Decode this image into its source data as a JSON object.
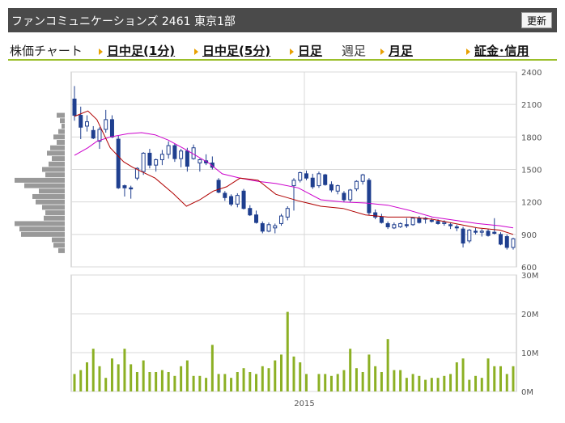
{
  "header": {
    "title": "ファンコミュニケーションズ 2461 東京1部",
    "refresh_label": "更新"
  },
  "tabs": {
    "section_label": "株価チャート",
    "items": [
      {
        "label": "日中足(1分)",
        "link": true
      },
      {
        "label": "日中足(5分)",
        "link": true
      },
      {
        "label": "日足",
        "link": true
      },
      {
        "label": "週足",
        "link": false
      },
      {
        "label": "月足",
        "link": true
      }
    ],
    "margin_link": "証金･信用"
  },
  "colors": {
    "candle": "#1f3f8f",
    "ma_short": "#b00000",
    "ma_long": "#cc00cc",
    "volume": "#8cb024",
    "profile": "#999999",
    "grid": "#d8d8d8"
  },
  "chart_data": [
    {
      "type": "candlestick",
      "title": "",
      "ylim": [
        600,
        2400
      ],
      "yticks": [
        600,
        900,
        1200,
        1500,
        1800,
        2100,
        2400
      ],
      "x_label_year": "2015",
      "candles": [
        [
          2150,
          2270,
          1950,
          2000
        ],
        [
          2000,
          2080,
          1780,
          1890
        ],
        [
          1900,
          2000,
          1850,
          1940
        ],
        [
          1860,
          1900,
          1780,
          1790
        ],
        [
          1760,
          1890,
          1690,
          1870
        ],
        [
          1870,
          2050,
          1840,
          1960
        ],
        [
          1960,
          2000,
          1790,
          1800
        ],
        [
          1780,
          1810,
          1320,
          1330
        ],
        [
          1350,
          1360,
          1250,
          1330
        ],
        [
          1330,
          1350,
          1230,
          1320
        ],
        [
          1420,
          1520,
          1400,
          1510
        ],
        [
          1480,
          1660,
          1450,
          1650
        ],
        [
          1650,
          1690,
          1510,
          1540
        ],
        [
          1540,
          1600,
          1480,
          1590
        ],
        [
          1590,
          1680,
          1540,
          1640
        ],
        [
          1640,
          1760,
          1600,
          1720
        ],
        [
          1720,
          1740,
          1570,
          1600
        ],
        [
          1600,
          1690,
          1520,
          1670
        ],
        [
          1670,
          1700,
          1480,
          1530
        ],
        [
          1600,
          1730,
          1590,
          1700
        ],
        [
          1560,
          1600,
          1480,
          1590
        ],
        [
          1580,
          1640,
          1540,
          1560
        ],
        [
          1560,
          1620,
          1500,
          1520
        ],
        [
          1400,
          1420,
          1280,
          1290
        ],
        [
          1280,
          1300,
          1210,
          1240
        ],
        [
          1250,
          1270,
          1160,
          1180
        ],
        [
          1180,
          1280,
          1150,
          1260
        ],
        [
          1300,
          1320,
          1130,
          1140
        ],
        [
          1140,
          1170,
          1070,
          1080
        ],
        [
          1080,
          1120,
          1000,
          1010
        ],
        [
          1000,
          1020,
          910,
          930
        ],
        [
          930,
          1010,
          920,
          990
        ],
        [
          960,
          1000,
          910,
          980
        ],
        [
          1000,
          1090,
          980,
          1070
        ],
        [
          1060,
          1160,
          1030,
          1140
        ],
        [
          1350,
          1420,
          1120,
          1400
        ],
        [
          1400,
          1480,
          1380,
          1470
        ],
        [
          1460,
          1490,
          1400,
          1420
        ],
        [
          1420,
          1460,
          1320,
          1340
        ],
        [
          1350,
          1480,
          1330,
          1460
        ],
        [
          1450,
          1460,
          1350,
          1360
        ],
        [
          1360,
          1390,
          1290,
          1310
        ],
        [
          1300,
          1360,
          1270,
          1350
        ],
        [
          1280,
          1300,
          1200,
          1220
        ],
        [
          1220,
          1320,
          1200,
          1310
        ],
        [
          1320,
          1400,
          1300,
          1390
        ],
        [
          1390,
          1460,
          1360,
          1450
        ],
        [
          1400,
          1420,
          1080,
          1100
        ],
        [
          1100,
          1130,
          1040,
          1060
        ],
        [
          1060,
          1090,
          1000,
          1010
        ],
        [
          1000,
          1020,
          950,
          970
        ],
        [
          960,
          1010,
          950,
          990
        ],
        [
          970,
          1010,
          960,
          1000
        ],
        [
          990,
          1050,
          960,
          980
        ],
        [
          990,
          1060,
          980,
          1050
        ],
        [
          1050,
          1070,
          1000,
          1010
        ],
        [
          1040,
          1060,
          1000,
          1050
        ],
        [
          1030,
          1050,
          1010,
          1020
        ],
        [
          1020,
          1040,
          990,
          1000
        ],
        [
          1000,
          1030,
          980,
          1010
        ],
        [
          990,
          1010,
          950,
          980
        ],
        [
          970,
          990,
          930,
          960
        ],
        [
          950,
          970,
          780,
          820
        ],
        [
          840,
          950,
          820,
          940
        ],
        [
          930,
          960,
          900,
          920
        ],
        [
          920,
          950,
          880,
          930
        ],
        [
          930,
          950,
          880,
          890
        ],
        [
          920,
          1050,
          900,
          910
        ],
        [
          900,
          920,
          800,
          810
        ],
        [
          880,
          900,
          760,
          780
        ],
        [
          780,
          870,
          760,
          860
        ]
      ],
      "ma_short": [
        [
          0,
          1990
        ],
        [
          6,
          2040
        ],
        [
          10,
          1960
        ],
        [
          16,
          1700
        ],
        [
          22,
          1570
        ],
        [
          26,
          1520
        ],
        [
          30,
          1480
        ],
        [
          36,
          1420
        ],
        [
          44,
          1280
        ],
        [
          50,
          1160
        ],
        [
          56,
          1220
        ],
        [
          62,
          1300
        ],
        [
          68,
          1340
        ],
        [
          74,
          1420
        ],
        [
          82,
          1400
        ],
        [
          90,
          1270
        ],
        [
          100,
          1210
        ],
        [
          110,
          1160
        ],
        [
          120,
          1140
        ],
        [
          130,
          1080
        ],
        [
          140,
          1060
        ],
        [
          150,
          1060
        ],
        [
          160,
          1040
        ],
        [
          170,
          1000
        ],
        [
          180,
          960
        ],
        [
          190,
          940
        ],
        [
          196,
          900
        ]
      ],
      "ma_long": [
        [
          0,
          1630
        ],
        [
          6,
          1700
        ],
        [
          10,
          1760
        ],
        [
          16,
          1800
        ],
        [
          24,
          1830
        ],
        [
          30,
          1840
        ],
        [
          36,
          1820
        ],
        [
          42,
          1770
        ],
        [
          50,
          1680
        ],
        [
          60,
          1560
        ],
        [
          66,
          1460
        ],
        [
          74,
          1420
        ],
        [
          82,
          1390
        ],
        [
          90,
          1370
        ],
        [
          100,
          1330
        ],
        [
          110,
          1220
        ],
        [
          120,
          1200
        ],
        [
          130,
          1190
        ],
        [
          140,
          1170
        ],
        [
          150,
          1120
        ],
        [
          160,
          1060
        ],
        [
          170,
          1030
        ],
        [
          180,
          1000
        ],
        [
          190,
          980
        ],
        [
          196,
          960
        ]
      ],
      "price_profile": [
        {
          "price": 2000,
          "length": 10
        },
        {
          "price": 1950,
          "length": 6
        },
        {
          "price": 1900,
          "length": 4
        },
        {
          "price": 1850,
          "length": 8
        },
        {
          "price": 1800,
          "length": 14
        },
        {
          "price": 1750,
          "length": 10
        },
        {
          "price": 1700,
          "length": 18
        },
        {
          "price": 1650,
          "length": 22
        },
        {
          "price": 1600,
          "length": 16
        },
        {
          "price": 1550,
          "length": 20
        },
        {
          "price": 1500,
          "length": 28
        },
        {
          "price": 1450,
          "length": 24
        },
        {
          "price": 1400,
          "length": 62
        },
        {
          "price": 1350,
          "length": 50
        },
        {
          "price": 1300,
          "length": 32
        },
        {
          "price": 1250,
          "length": 40
        },
        {
          "price": 1200,
          "length": 36
        },
        {
          "price": 1150,
          "length": 28
        },
        {
          "price": 1100,
          "length": 24
        },
        {
          "price": 1050,
          "length": 26
        },
        {
          "price": 1000,
          "length": 62
        },
        {
          "price": 950,
          "length": 56
        },
        {
          "price": 900,
          "length": 54
        },
        {
          "price": 850,
          "length": 16
        },
        {
          "price": 800,
          "length": 14
        },
        {
          "price": 750,
          "length": 8
        }
      ]
    },
    {
      "type": "bar",
      "title": "",
      "ylabel": "",
      "ylim": [
        0,
        30
      ],
      "ytick_labels": [
        "0M",
        "10M",
        "20M",
        "30M"
      ],
      "x_label_year": "2015",
      "values": [
        4.5,
        5.5,
        7.5,
        11,
        6.5,
        3.5,
        8.5,
        7,
        11,
        7,
        5,
        8,
        5,
        5,
        5.5,
        5,
        4,
        6.5,
        8,
        4,
        4,
        3.5,
        12,
        4.5,
        4.5,
        3.5,
        5,
        6,
        5,
        4.5,
        6.5,
        6,
        8,
        9.5,
        20.5,
        9,
        7.5,
        4.5,
        0,
        4.5,
        4.5,
        4,
        4.5,
        5.5,
        11,
        6,
        5,
        9.5,
        6.5,
        5,
        13.5,
        5.5,
        5.5,
        3.5,
        4.5,
        4,
        3,
        3.5,
        3.5,
        4,
        4.5,
        7.5,
        8.5,
        3,
        4,
        3.5,
        8.5,
        6.5,
        6.5,
        4.5,
        6.5
      ]
    }
  ]
}
